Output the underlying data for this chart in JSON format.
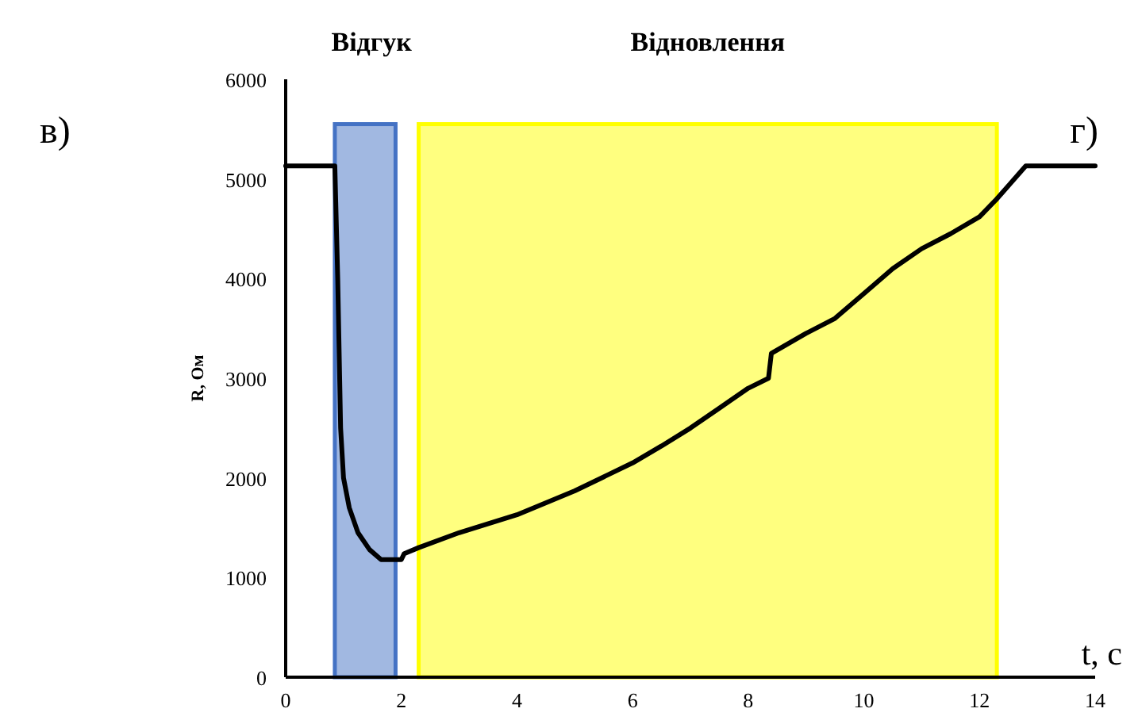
{
  "chart_data": {
    "type": "line",
    "xlabel": "t, с",
    "ylabel": "R, Ом",
    "annotations": [
      "в)",
      "г)"
    ],
    "x": [
      0,
      0.85,
      0.9,
      0.95,
      1.0,
      1.1,
      1.25,
      1.45,
      1.65,
      2.0,
      2.05,
      2.3,
      3,
      4,
      5,
      6,
      6.5,
      7,
      7.5,
      8,
      8.35,
      8.4,
      9,
      9.5,
      10,
      10.5,
      11,
      11.5,
      12,
      12.3,
      12.8,
      14
    ],
    "series": [
      {
        "color": "#000000",
        "values": [
          5130,
          5130,
          4000,
          2500,
          2000,
          1700,
          1450,
          1280,
          1180,
          1180,
          1240,
          1300,
          1450,
          1630,
          1870,
          2150,
          2320,
          2500,
          2700,
          2900,
          3000,
          3250,
          3450,
          3600,
          3850,
          4100,
          4300,
          4450,
          4620,
          4800,
          5130,
          5130
        ]
      }
    ],
    "bands": [
      {
        "axis": "x",
        "from": 0.85,
        "to": 1.9,
        "label": "Відгук",
        "color": "#4472c4"
      },
      {
        "axis": "x",
        "from": 2.3,
        "to": 12.3,
        "label": "Відновлення",
        "color": "#ffff00"
      }
    ],
    "xlim": [
      0,
      14
    ],
    "xticks": [
      0,
      2,
      4,
      6,
      8,
      10,
      12,
      14
    ],
    "ylim": [
      0,
      6000
    ],
    "yticks": [
      0,
      1000,
      2000,
      3000,
      4000,
      5000,
      6000
    ],
    "grid": false,
    "marker": "none",
    "line_style": "solid"
  }
}
